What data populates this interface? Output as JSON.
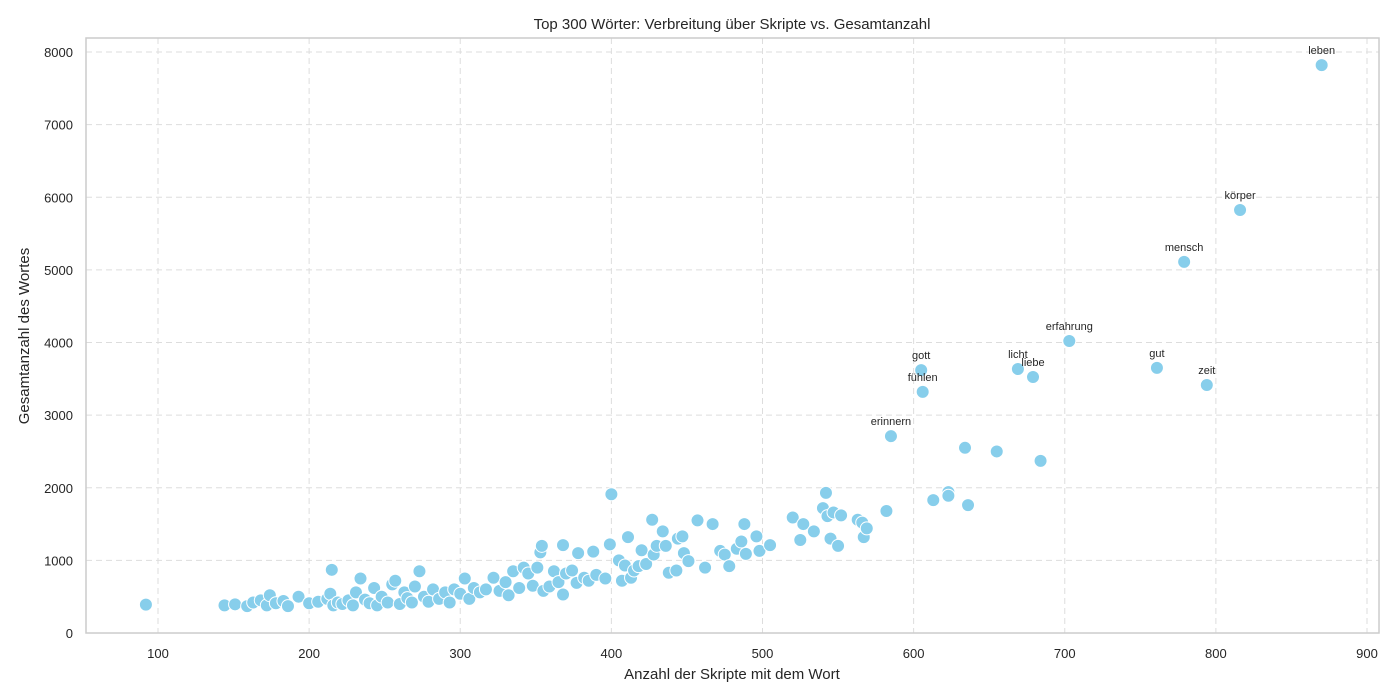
{
  "chart_data": {
    "type": "scatter",
    "title": "Top 300 Wörter: Verbreitung über Skripte vs. Gesamtanzahl",
    "xlabel": "Anzahl der Skripte mit dem Wort",
    "ylabel": "Gesamtanzahl des Wortes",
    "xlim": [
      52,
      908
    ],
    "ylim": [
      0,
      8200
    ],
    "xticks": [
      100,
      200,
      300,
      400,
      500,
      600,
      700,
      800,
      900
    ],
    "yticks": [
      0,
      1000,
      2000,
      3000,
      4000,
      5000,
      6000,
      7000,
      8000
    ],
    "grid": true,
    "legend": null,
    "marker_color": "#87CEEB",
    "marker_edge_color": "#FFFFFF",
    "labeled_points": [
      {
        "label": "leben",
        "x": 870,
        "y": 7820
      },
      {
        "label": "körper",
        "x": 816,
        "y": 5825
      },
      {
        "label": "mensch",
        "x": 779,
        "y": 5110
      },
      {
        "label": "erfahrung",
        "x": 703,
        "y": 4020
      },
      {
        "label": "gut",
        "x": 761,
        "y": 3650
      },
      {
        "label": "zeit",
        "x": 794,
        "y": 3415
      },
      {
        "label": "licht",
        "x": 669,
        "y": 3635
      },
      {
        "label": "liebe",
        "x": 679,
        "y": 3525
      },
      {
        "label": "gott",
        "x": 605,
        "y": 3620
      },
      {
        "label": "fühlen",
        "x": 606,
        "y": 3320
      },
      {
        "label": "erinnern",
        "x": 585,
        "y": 2710
      }
    ],
    "points": [
      [
        92,
        390
      ],
      [
        144,
        380
      ],
      [
        151,
        395
      ],
      [
        159,
        370
      ],
      [
        163,
        420
      ],
      [
        168,
        450
      ],
      [
        172,
        380
      ],
      [
        174,
        520
      ],
      [
        178,
        410
      ],
      [
        183,
        440
      ],
      [
        186,
        370
      ],
      [
        193,
        500
      ],
      [
        200,
        410
      ],
      [
        206,
        430
      ],
      [
        212,
        470
      ],
      [
        214,
        540
      ],
      [
        216,
        380
      ],
      [
        215,
        870
      ],
      [
        219,
        420
      ],
      [
        222,
        400
      ],
      [
        226,
        450
      ],
      [
        229,
        380
      ],
      [
        231,
        560
      ],
      [
        234,
        750
      ],
      [
        237,
        460
      ],
      [
        240,
        410
      ],
      [
        243,
        620
      ],
      [
        245,
        380
      ],
      [
        248,
        500
      ],
      [
        252,
        420
      ],
      [
        255,
        670
      ],
      [
        257,
        720
      ],
      [
        260,
        400
      ],
      [
        263,
        560
      ],
      [
        265,
        480
      ],
      [
        268,
        420
      ],
      [
        270,
        640
      ],
      [
        273,
        850
      ],
      [
        276,
        500
      ],
      [
        279,
        430
      ],
      [
        282,
        600
      ],
      [
        286,
        470
      ],
      [
        290,
        560
      ],
      [
        293,
        420
      ],
      [
        296,
        600
      ],
      [
        300,
        540
      ],
      [
        303,
        750
      ],
      [
        306,
        470
      ],
      [
        309,
        620
      ],
      [
        313,
        560
      ],
      [
        317,
        600
      ],
      [
        322,
        760
      ],
      [
        326,
        580
      ],
      [
        330,
        700
      ],
      [
        332,
        520
      ],
      [
        335,
        850
      ],
      [
        339,
        620
      ],
      [
        342,
        900
      ],
      [
        345,
        820
      ],
      [
        348,
        650
      ],
      [
        351,
        900
      ],
      [
        353,
        1110
      ],
      [
        354,
        1200
      ],
      [
        355,
        580
      ],
      [
        359,
        640
      ],
      [
        362,
        850
      ],
      [
        365,
        700
      ],
      [
        368,
        1210
      ],
      [
        368,
        530
      ],
      [
        370,
        820
      ],
      [
        374,
        860
      ],
      [
        377,
        690
      ],
      [
        378,
        1100
      ],
      [
        382,
        760
      ],
      [
        385,
        720
      ],
      [
        388,
        1120
      ],
      [
        390,
        800
      ],
      [
        396,
        750
      ],
      [
        399,
        1220
      ],
      [
        400,
        1910
      ],
      [
        405,
        1000
      ],
      [
        407,
        720
      ],
      [
        409,
        930
      ],
      [
        411,
        1320
      ],
      [
        413,
        760
      ],
      [
        415,
        860
      ],
      [
        418,
        920
      ],
      [
        420,
        1140
      ],
      [
        423,
        950
      ],
      [
        427,
        1560
      ],
      [
        428,
        1080
      ],
      [
        430,
        1200
      ],
      [
        434,
        1400
      ],
      [
        436,
        1200
      ],
      [
        438,
        830
      ],
      [
        443,
        860
      ],
      [
        444,
        1300
      ],
      [
        447,
        1330
      ],
      [
        448,
        1100
      ],
      [
        451,
        990
      ],
      [
        457,
        1550
      ],
      [
        462,
        900
      ],
      [
        467,
        1500
      ],
      [
        472,
        1130
      ],
      [
        475,
        1080
      ],
      [
        478,
        920
      ],
      [
        483,
        1160
      ],
      [
        486,
        1260
      ],
      [
        488,
        1500
      ],
      [
        489,
        1090
      ],
      [
        496,
        1330
      ],
      [
        498,
        1130
      ],
      [
        505,
        1210
      ],
      [
        520,
        1590
      ],
      [
        525,
        1280
      ],
      [
        527,
        1500
      ],
      [
        534,
        1400
      ],
      [
        540,
        1720
      ],
      [
        542,
        1930
      ],
      [
        543,
        1610
      ],
      [
        545,
        1300
      ],
      [
        547,
        1660
      ],
      [
        550,
        1200
      ],
      [
        552,
        1620
      ],
      [
        563,
        1560
      ],
      [
        566,
        1520
      ],
      [
        567,
        1320
      ],
      [
        569,
        1440
      ],
      [
        582,
        1680
      ],
      [
        613,
        1830
      ],
      [
        623,
        1940
      ],
      [
        623,
        1890
      ],
      [
        634,
        2550
      ],
      [
        636,
        1760
      ],
      [
        655,
        2500
      ],
      [
        684,
        2370
      ]
    ]
  }
}
